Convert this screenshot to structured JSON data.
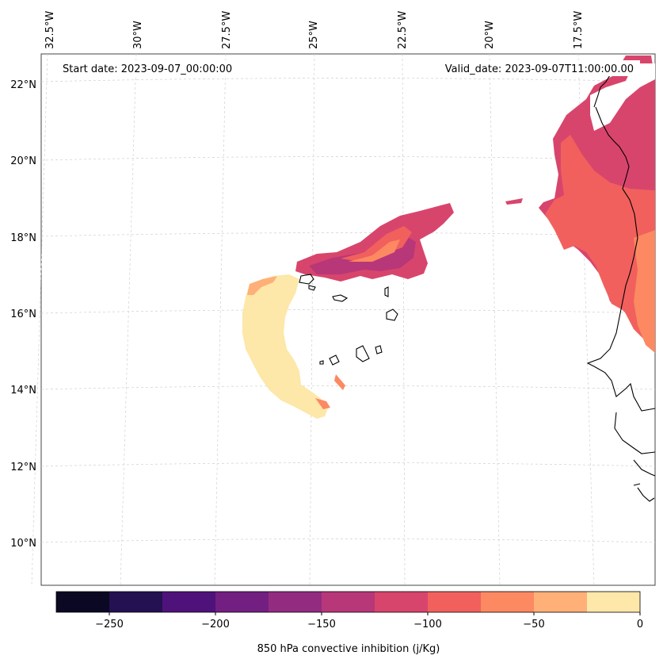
{
  "header": {
    "start_date": "Start date: 2023-09-07_00:00:00",
    "valid_date": "Valid_date: 2023-09-07T11:00:00.00"
  },
  "map": {
    "lon_labels": [
      "32.5°W",
      "30°W",
      "27.5°W",
      "25°W",
      "22.5°W",
      "20°W",
      "17.5°W"
    ],
    "lat_labels": [
      "22°N",
      "20°N",
      "18°N",
      "16°N",
      "14°N",
      "12°N",
      "10°N"
    ],
    "gridlines": true
  },
  "colorbar": {
    "label": "850 hPa convective inhibition (j/Kg)",
    "tick_labels": [
      "−250",
      "−200",
      "−150",
      "−100",
      "−50",
      "0"
    ],
    "range": [
      -275,
      0
    ],
    "levels": [
      -275,
      -250,
      -225,
      -200,
      -175,
      -150,
      -125,
      -100,
      -75,
      -50,
      -25,
      0
    ],
    "colors": [
      "#0a0822",
      "#231151",
      "#4f127b",
      "#721f81",
      "#932b80",
      "#b73779",
      "#d8456c",
      "#f1605d",
      "#fc8961",
      "#feb078",
      "#fde7a9"
    ]
  }
}
